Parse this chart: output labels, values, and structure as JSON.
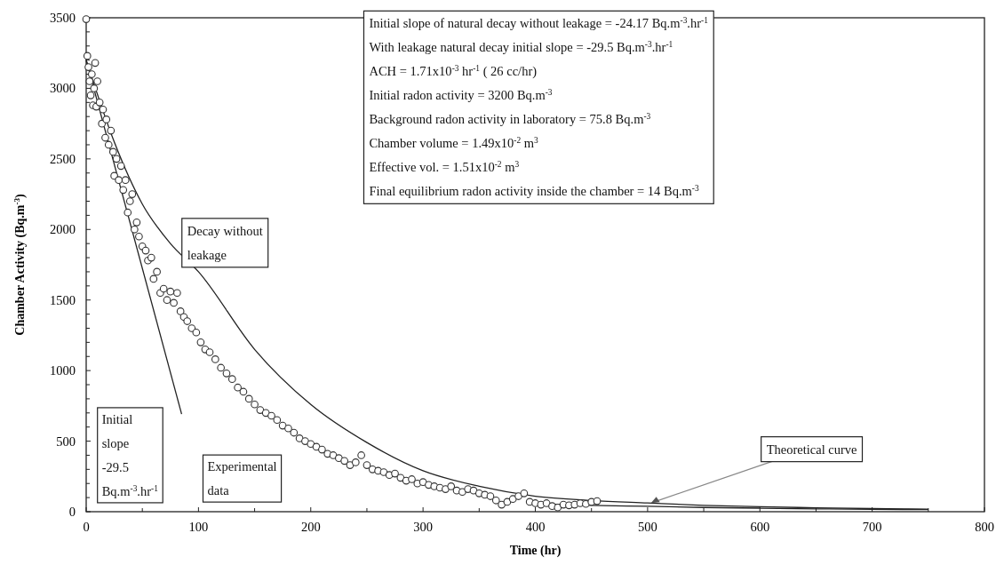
{
  "chart_data": {
    "type": "scatter",
    "xlabel": "Time (hr)",
    "ylabel": "Chamber Activity (Bq.m$^{-3}$)",
    "xlim": [
      0,
      800
    ],
    "ylim": [
      0,
      3500
    ],
    "xticks": [
      0,
      {
        "value": 50,
        "label": null
      },
      100,
      {
        "value": 150,
        "label": null
      },
      200,
      {
        "value": 250,
        "label": null
      },
      300,
      {
        "value": 350,
        "label": null
      },
      400,
      {
        "value": 450,
        "label": null
      },
      500,
      {
        "value": 550,
        "label": null
      },
      600,
      {
        "value": 650,
        "label": null
      },
      700,
      {
        "value": 750,
        "label": null
      },
      800
    ],
    "yticks": [
      0,
      {
        "value": 100,
        "label": null
      },
      {
        "value": 200,
        "label": null
      },
      {
        "value": 300,
        "label": null
      },
      {
        "value": 400,
        "label": null
      },
      500,
      {
        "value": 600,
        "label": null
      },
      {
        "value": 700,
        "label": null
      },
      {
        "value": 800,
        "label": null
      },
      {
        "value": 900,
        "label": null
      },
      1000,
      {
        "value": 1100,
        "label": null
      },
      {
        "value": 1200,
        "label": null
      },
      {
        "value": 1300,
        "label": null
      },
      {
        "value": 1400,
        "label": null
      },
      1500,
      {
        "value": 1600,
        "label": null
      },
      {
        "value": 1700,
        "label": null
      },
      {
        "value": 1800,
        "label": null
      },
      {
        "value": 1900,
        "label": null
      },
      2000,
      {
        "value": 2100,
        "label": null
      },
      {
        "value": 2200,
        "label": null
      },
      {
        "value": 2300,
        "label": null
      },
      {
        "value": 2400,
        "label": null
      },
      2500,
      {
        "value": 2600,
        "label": null
      },
      {
        "value": 2700,
        "label": null
      },
      {
        "value": 2800,
        "label": null
      },
      {
        "value": 2900,
        "label": null
      },
      3000,
      {
        "value": 3100,
        "label": null
      },
      {
        "value": 3200,
        "label": null
      },
      {
        "value": 3300,
        "label": null
      },
      {
        "value": 3400,
        "label": null
      },
      3500
    ],
    "grid": false,
    "series": [
      {
        "type": "line",
        "color": "#222222",
        "marker": "none",
        "x": [
          0,
          25,
          50,
          75,
          100,
          150,
          200,
          250,
          300,
          350,
          400,
          450,
          500,
          550,
          600,
          650,
          700,
          750
        ],
        "values": [
          3200,
          2620,
          2180,
          1900,
          1700,
          1150,
          760,
          490,
          290,
          180,
          110,
          80,
          62,
          45,
          35,
          28,
          22,
          18
        ]
      },
      {
        "type": "line",
        "color": "#222222",
        "marker": "none",
        "x": [
          400,
          450,
          500,
          550,
          600,
          650,
          700,
          750
        ],
        "values": [
          55,
          45,
          38,
          30,
          25,
          20,
          17,
          15
        ]
      },
      {
        "type": "line",
        "color": "#222222",
        "marker": "none",
        "x": [
          0,
          85
        ],
        "values": [
          3200,
          692
        ]
      },
      {
        "color": "#333333",
        "marker": "circle",
        "x": [
          0,
          1,
          2,
          3,
          4,
          5,
          6,
          7,
          8,
          9,
          10,
          12,
          14,
          15,
          17,
          18,
          20,
          22,
          24,
          25,
          27,
          29,
          31,
          33,
          35,
          37,
          39,
          41,
          43,
          45,
          47,
          50,
          53,
          55,
          58,
          60,
          63,
          66,
          69,
          72,
          75,
          78,
          81,
          84,
          87,
          90,
          94,
          98,
          102,
          106,
          110,
          115,
          120,
          125,
          130,
          135,
          140,
          145,
          150,
          155,
          160,
          165,
          170,
          175,
          180,
          185,
          190,
          195,
          200,
          205,
          210,
          215,
          220,
          225,
          230,
          235,
          240,
          245,
          250,
          255,
          260,
          265,
          270,
          275,
          280,
          285,
          290,
          295,
          300,
          305,
          310,
          315,
          320,
          325,
          330,
          335,
          340,
          345,
          350,
          355,
          360,
          365,
          370,
          375,
          380,
          385,
          390,
          395,
          400,
          405,
          410,
          415,
          420,
          425,
          430,
          435,
          440,
          445,
          450,
          455
        ],
        "values": [
          3490,
          3230,
          3150,
          3050,
          2950,
          3100,
          2880,
          3000,
          3180,
          2870,
          3050,
          2900,
          2750,
          2850,
          2650,
          2780,
          2600,
          2700,
          2550,
          2380,
          2500,
          2350,
          2450,
          2280,
          2350,
          2120,
          2200,
          2250,
          2000,
          2050,
          1950,
          1880,
          1850,
          1780,
          1800,
          1650,
          1700,
          1550,
          1580,
          1500,
          1560,
          1480,
          1550,
          1420,
          1380,
          1350,
          1300,
          1270,
          1200,
          1150,
          1130,
          1080,
          1020,
          980,
          940,
          880,
          850,
          800,
          760,
          720,
          700,
          680,
          650,
          610,
          590,
          560,
          520,
          500,
          480,
          460,
          440,
          410,
          400,
          380,
          360,
          330,
          350,
          400,
          330,
          300,
          290,
          280,
          260,
          270,
          240,
          220,
          230,
          200,
          210,
          190,
          180,
          170,
          160,
          180,
          150,
          140,
          160,
          150,
          130,
          120,
          110,
          80,
          50,
          70,
          90,
          110,
          130,
          70,
          60,
          50,
          60,
          40,
          30,
          50,
          45,
          50,
          60,
          55,
          70,
          75
        ]
      }
    ],
    "annotations": [
      "Initial slope of natural decay without leakage = -24.17 Bq.m$^{-3}$.hr$^{-1}$\nWith leakage natural decay initial slope =  -29.5 Bq.m$^{-3}$.hr$^{-1}$\nACH =  1.71x10$^{-3}$ hr$^{-1}$ ( 26 cc/hr)\nInitial radon activity =  3200 Bq.m$^{-3}$\nBackground radon activity in laboratory = 75.8 Bq.m$^{-3}$\nChamber volume =  1.49x10$^{-2}$ m$^{3}$\nEffective vol. = 1.51x10$^{-2}$ m$^{3}$\nFinal equilibrium radon activity  inside the chamber = 14 Bq.m$^{-3}$",
      "Decay without\nleakage",
      "Initial\nslope\n-29.5\nBq.m$^{-3}$.hr$^{-1}$",
      "Experimental\ndata",
      {
        "text": "Theoretical curve",
        "x": 503,
        "y": 62
      }
    ]
  }
}
